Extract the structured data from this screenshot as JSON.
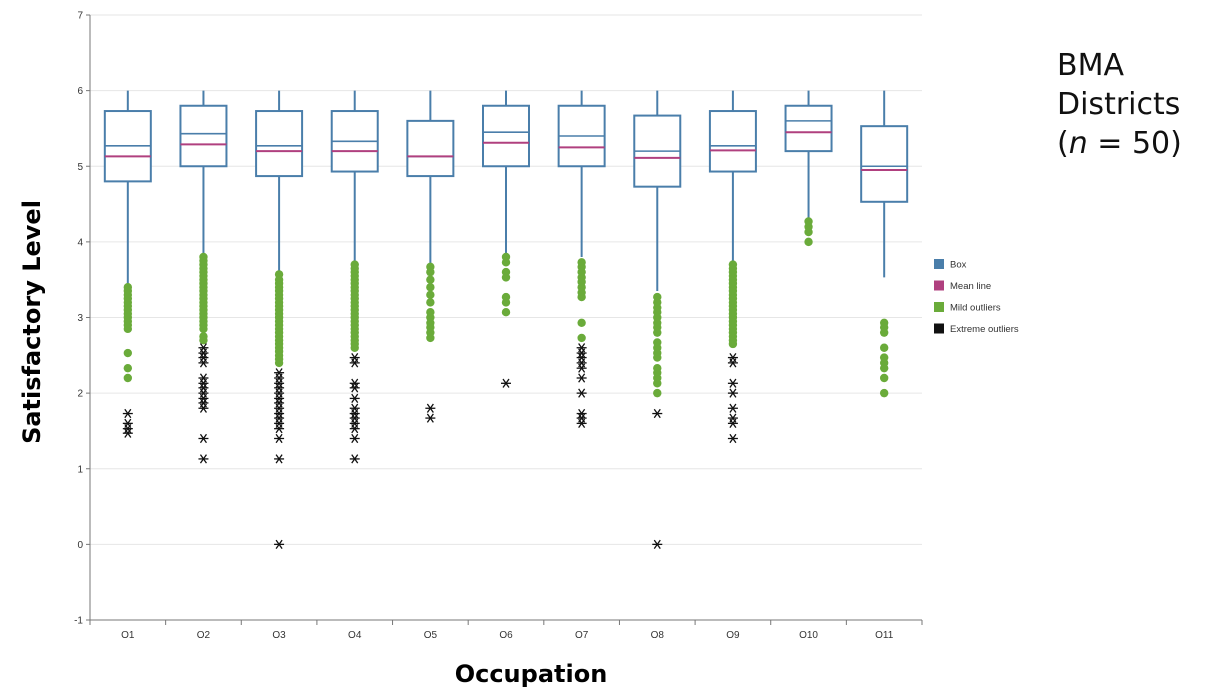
{
  "side_note": {
    "line1": "BMA",
    "line2": "Districts",
    "line3_prefix": "(",
    "line3_n": "n",
    "line3_suffix": " = 50)"
  },
  "colors": {
    "box": "#4a7eaa",
    "mean": "#b0407f",
    "mild": "#6aab3a",
    "extreme": "#111111",
    "grid": "#e6e6e6",
    "axis": "#777777"
  },
  "chart_data": {
    "type": "box",
    "title": "",
    "xlabel": "Occupation",
    "ylabel": "Satisfactory Level",
    "ylim": [
      -1,
      7
    ],
    "yticks": [
      -1,
      0,
      1,
      2,
      3,
      4,
      5,
      6,
      7
    ],
    "grid": true,
    "legend_position": "right",
    "legend": [
      {
        "key": "box",
        "label": "Box"
      },
      {
        "key": "mean",
        "label": "Mean line"
      },
      {
        "key": "mild",
        "label": "Mild outliers"
      },
      {
        "key": "extreme",
        "label": "Extreme outliers"
      }
    ],
    "categories": [
      "O1",
      "O2",
      "O3",
      "O4",
      "O5",
      "O6",
      "O7",
      "O8",
      "O9",
      "O10",
      "O11"
    ],
    "boxes": [
      {
        "category": "O1",
        "whisker_low": 3.45,
        "q1": 4.8,
        "median": 5.27,
        "q3": 5.73,
        "whisker_high": 6.0,
        "mean": 5.13,
        "mild": [
          3.4,
          3.35,
          3.3,
          3.25,
          3.2,
          3.15,
          3.1,
          3.05,
          3.0,
          2.95,
          2.9,
          2.85,
          2.53,
          2.33,
          2.2
        ],
        "extreme": [
          1.73,
          1.6,
          1.53,
          1.47
        ]
      },
      {
        "category": "O2",
        "whisker_low": 3.85,
        "q1": 5.0,
        "median": 5.43,
        "q3": 5.8,
        "whisker_high": 6.0,
        "mean": 5.29,
        "mild": [
          3.8,
          3.75,
          3.7,
          3.65,
          3.6,
          3.55,
          3.5,
          3.45,
          3.4,
          3.35,
          3.3,
          3.25,
          3.2,
          3.15,
          3.1,
          3.05,
          3.0,
          2.95,
          2.9,
          2.85,
          2.75,
          2.7
        ],
        "extreme": [
          2.6,
          2.53,
          2.47,
          2.4,
          2.2,
          2.13,
          2.07,
          2.0,
          1.93,
          1.87,
          1.8,
          1.4,
          1.13
        ]
      },
      {
        "category": "O3",
        "whisker_low": 3.6,
        "q1": 4.87,
        "median": 5.27,
        "q3": 5.73,
        "whisker_high": 6.0,
        "mean": 5.2,
        "mild": [
          3.57,
          3.5,
          3.45,
          3.4,
          3.35,
          3.3,
          3.25,
          3.2,
          3.15,
          3.1,
          3.05,
          3.0,
          2.95,
          2.9,
          2.85,
          2.8,
          2.75,
          2.7,
          2.65,
          2.6,
          2.55,
          2.5,
          2.45,
          2.4
        ],
        "extreme": [
          2.27,
          2.2,
          2.13,
          2.07,
          2.0,
          1.93,
          1.87,
          1.8,
          1.73,
          1.67,
          1.6,
          1.53,
          1.4,
          1.13,
          0.0
        ]
      },
      {
        "category": "O4",
        "whisker_low": 3.75,
        "q1": 4.93,
        "median": 5.33,
        "q3": 5.73,
        "whisker_high": 6.0,
        "mean": 5.2,
        "mild": [
          3.7,
          3.65,
          3.6,
          3.55,
          3.5,
          3.45,
          3.4,
          3.35,
          3.3,
          3.25,
          3.2,
          3.15,
          3.1,
          3.05,
          3.0,
          2.95,
          2.9,
          2.85,
          2.8,
          2.75,
          2.7,
          2.65,
          2.6
        ],
        "extreme": [
          2.47,
          2.4,
          2.13,
          2.07,
          1.93,
          1.8,
          1.73,
          1.67,
          1.6,
          1.53,
          1.4,
          1.13
        ]
      },
      {
        "category": "O5",
        "whisker_low": 3.7,
        "q1": 4.87,
        "median": 5.13,
        "q3": 5.6,
        "whisker_high": 6.0,
        "mean": 5.13,
        "mild": [
          3.67,
          3.6,
          3.5,
          3.4,
          3.3,
          3.2,
          3.07,
          3.0,
          2.93,
          2.87,
          2.8,
          2.73
        ],
        "extreme": [
          1.8,
          1.67
        ]
      },
      {
        "category": "O6",
        "whisker_low": 3.85,
        "q1": 5.0,
        "median": 5.45,
        "q3": 5.8,
        "whisker_high": 6.0,
        "mean": 5.31,
        "mild": [
          3.8,
          3.73,
          3.6,
          3.53,
          3.27,
          3.2,
          3.07
        ],
        "extreme": [
          2.13
        ]
      },
      {
        "category": "O7",
        "whisker_low": 3.8,
        "q1": 5.0,
        "median": 5.4,
        "q3": 5.8,
        "whisker_high": 6.0,
        "mean": 5.25,
        "mild": [
          3.73,
          3.67,
          3.6,
          3.53,
          3.47,
          3.4,
          3.33,
          3.27,
          2.93,
          2.73
        ],
        "extreme": [
          2.6,
          2.53,
          2.47,
          2.4,
          2.33,
          2.2,
          2.0,
          1.73,
          1.67,
          1.6
        ]
      },
      {
        "category": "O8",
        "whisker_low": 3.35,
        "q1": 4.73,
        "median": 5.2,
        "q3": 5.67,
        "whisker_high": 6.0,
        "mean": 5.11,
        "mild": [
          3.27,
          3.2,
          3.13,
          3.07,
          3.0,
          2.93,
          2.87,
          2.8,
          2.67,
          2.6,
          2.53,
          2.47,
          2.33,
          2.27,
          2.2,
          2.13,
          2.0
        ],
        "extreme": [
          1.73,
          0.0
        ]
      },
      {
        "category": "O9",
        "whisker_low": 3.75,
        "q1": 4.93,
        "median": 5.27,
        "q3": 5.73,
        "whisker_high": 6.0,
        "mean": 5.21,
        "mild": [
          3.7,
          3.65,
          3.6,
          3.55,
          3.5,
          3.45,
          3.4,
          3.35,
          3.3,
          3.25,
          3.2,
          3.15,
          3.1,
          3.05,
          3.0,
          2.95,
          2.9,
          2.85,
          2.8,
          2.75,
          2.7,
          2.65
        ],
        "extreme": [
          2.47,
          2.4,
          2.13,
          2.0,
          1.8,
          1.67,
          1.6,
          1.4
        ]
      },
      {
        "category": "O10",
        "whisker_low": 4.3,
        "q1": 5.2,
        "median": 5.6,
        "q3": 5.8,
        "whisker_high": 6.0,
        "mean": 5.45,
        "mild": [
          4.27,
          4.2,
          4.13,
          4.0
        ],
        "extreme": []
      },
      {
        "category": "O11",
        "whisker_low": 3.53,
        "q1": 4.53,
        "median": 5.0,
        "q3": 5.53,
        "whisker_high": 6.0,
        "mean": 4.95,
        "mild": [
          2.93,
          2.87,
          2.8,
          2.6,
          2.47,
          2.4,
          2.33,
          2.2,
          2.0
        ],
        "extreme": []
      }
    ]
  }
}
